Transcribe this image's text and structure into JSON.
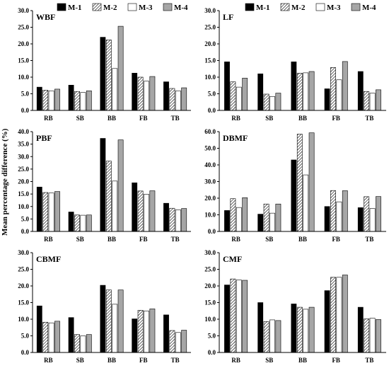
{
  "chart_data": {
    "type": "bar",
    "ylabel": "Mean percentage difference (%)",
    "categories": [
      "RB",
      "SB",
      "BB",
      "FB",
      "TB"
    ],
    "legend": [
      "M-1",
      "M-2",
      "M-3",
      "M-4"
    ],
    "colors": {
      "M-1": "#000000",
      "M-2": "hatched",
      "M-3": "#ffffff",
      "M-4": "#a6a6a6"
    },
    "panels": [
      {
        "title": "WBF",
        "ylim": [
          0,
          30
        ],
        "yticks": [
          "0.0",
          "5.0",
          "10.0",
          "15.0",
          "20.0",
          "25.0",
          "30.0"
        ],
        "series": [
          {
            "name": "M-1",
            "values": [
              7.0,
              7.6,
              22.0,
              11.2,
              8.6
            ]
          },
          {
            "name": "M-2",
            "values": [
              6.1,
              5.7,
              21.2,
              10.0,
              6.6
            ]
          },
          {
            "name": "M-3",
            "values": [
              5.9,
              5.4,
              12.6,
              8.8,
              5.9
            ]
          },
          {
            "name": "M-4",
            "values": [
              6.4,
              5.9,
              25.3,
              10.2,
              6.8
            ]
          }
        ]
      },
      {
        "title": "LF",
        "ylim": [
          0,
          30
        ],
        "yticks": [
          "0.0",
          "5.0",
          "10.0",
          "15.0",
          "20.0",
          "25.0",
          "30.0"
        ],
        "series": [
          {
            "name": "M-1",
            "values": [
              14.6,
              11.0,
              14.6,
              6.5,
              11.7
            ]
          },
          {
            "name": "M-2",
            "values": [
              8.6,
              4.9,
              11.2,
              12.9,
              5.7
            ]
          },
          {
            "name": "M-3",
            "values": [
              7.0,
              4.2,
              11.3,
              9.2,
              5.2
            ]
          },
          {
            "name": "M-4",
            "values": [
              9.7,
              5.2,
              11.7,
              14.7,
              6.2
            ]
          }
        ]
      },
      {
        "title": "PBF",
        "ylim": [
          0,
          40
        ],
        "yticks": [
          "0.0",
          "5.0",
          "10.0",
          "15.0",
          "20.0",
          "25.0",
          "30.0",
          "35.0",
          "40.0"
        ],
        "series": [
          {
            "name": "M-1",
            "values": [
              17.8,
              7.8,
              37.3,
              19.5,
              11.3
            ]
          },
          {
            "name": "M-2",
            "values": [
              15.6,
              6.6,
              28.2,
              16.2,
              9.3
            ]
          },
          {
            "name": "M-3",
            "values": [
              15.4,
              6.5,
              20.2,
              14.9,
              8.7
            ]
          },
          {
            "name": "M-4",
            "values": [
              16.0,
              6.6,
              36.7,
              16.3,
              9.2
            ]
          }
        ]
      },
      {
        "title": "DBMF",
        "ylim": [
          0,
          60
        ],
        "yticks": [
          "0.0",
          "10.0",
          "20.0",
          "30.0",
          "40.0",
          "50.0",
          "60.0"
        ],
        "series": [
          {
            "name": "M-1",
            "values": [
              12.6,
              10.4,
              43.0,
              15.0,
              14.3
            ]
          },
          {
            "name": "M-2",
            "values": [
              19.7,
              16.5,
              58.5,
              24.6,
              20.9
            ]
          },
          {
            "name": "M-3",
            "values": [
              14.4,
              11.0,
              34.0,
              17.8,
              13.8
            ]
          },
          {
            "name": "M-4",
            "values": [
              20.3,
              16.5,
              59.3,
              24.5,
              21.0
            ]
          }
        ]
      },
      {
        "title": "CBMF",
        "ylim": [
          0,
          30
        ],
        "yticks": [
          "0.0",
          "5.0",
          "10.0",
          "15.0",
          "20.0",
          "25.0",
          "30.0"
        ],
        "series": [
          {
            "name": "M-1",
            "values": [
              14.0,
              10.5,
              20.2,
              10.1,
              11.3
            ]
          },
          {
            "name": "M-2",
            "values": [
              9.1,
              5.4,
              18.8,
              12.7,
              6.6
            ]
          },
          {
            "name": "M-3",
            "values": [
              8.9,
              5.0,
              14.5,
              12.5,
              6.0
            ]
          },
          {
            "name": "M-4",
            "values": [
              9.4,
              5.4,
              18.8,
              13.1,
              6.7
            ]
          }
        ]
      },
      {
        "title": "CMF",
        "ylim": [
          0,
          30
        ],
        "yticks": [
          "0.0",
          "5.0",
          "10.0",
          "15.0",
          "20.0",
          "25.0",
          "30.0"
        ],
        "series": [
          {
            "name": "M-1",
            "values": [
              20.3,
              15.0,
              14.6,
              18.6,
              13.6
            ]
          },
          {
            "name": "M-2",
            "values": [
              22.1,
              9.3,
              13.6,
              22.6,
              10.1
            ]
          },
          {
            "name": "M-3",
            "values": [
              21.8,
              9.8,
              13.0,
              22.6,
              10.3
            ]
          },
          {
            "name": "M-4",
            "values": [
              21.7,
              9.6,
              13.6,
              23.3,
              9.9
            ]
          }
        ]
      }
    ]
  }
}
